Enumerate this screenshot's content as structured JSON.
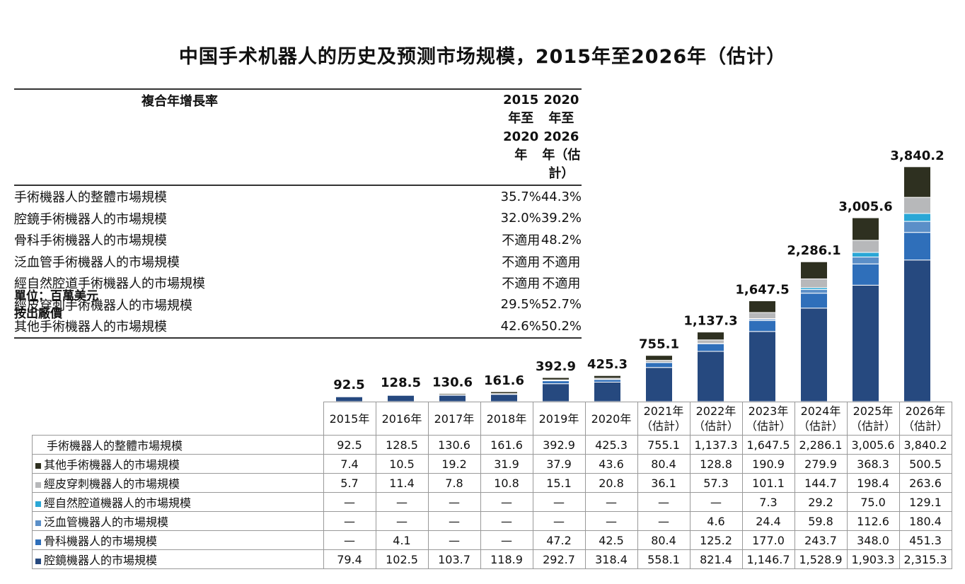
{
  "title": "中国手术机器人的历史及预测市场规模，2015年至2026年（估计）",
  "cagr_table": {
    "header": {
      "label": "複合年增長率",
      "col1": [
        "2015年至",
        "2020年"
      ],
      "col2": [
        "2020年至",
        "2026年（估計）"
      ]
    },
    "rows": [
      {
        "label": "手術機器人的整體市場規模",
        "col1": "35.7%",
        "col2": "44.3%"
      },
      {
        "label": "腔鏡手術機器人的市場規模",
        "col1": "32.0%",
        "col2": "39.2%"
      },
      {
        "label": "骨科手術機器人的市場規模",
        "col1": "不適用",
        "col2": "48.2%"
      },
      {
        "label": "泛血管手術機器人的市場規模",
        "col1": "不適用",
        "col2": "不適用"
      },
      {
        "label": "經自然腔道手術機器人的市場規模",
        "col1": "不適用",
        "col2": "不適用"
      },
      {
        "label": "經皮穿刺手術機器人的市場規模",
        "col1": "29.5%",
        "col2": "52.7%"
      },
      {
        "label": "其他手術機器人的市場規模",
        "col1": "42.6%",
        "col2": "50.2%"
      }
    ]
  },
  "unit_line1": "單位：百萬美元",
  "unit_line2": "按出廠價",
  "colors": {
    "other": "#2e3020",
    "percutaneous": "#b7b8ba",
    "natural_orifice": "#2aa7d6",
    "vascular": "#5b8fc8",
    "orthopedic": "#2f6fba",
    "laparoscopic": "#26497f"
  },
  "chart_data": {
    "type": "bar",
    "stacked": true,
    "categories": [
      [
        "2015年"
      ],
      [
        "2016年"
      ],
      [
        "2017年"
      ],
      [
        "2018年"
      ],
      [
        "2019年"
      ],
      [
        "2020年"
      ],
      [
        "2021年",
        "（估計）"
      ],
      [
        "2022年",
        "（估計）"
      ],
      [
        "2023年",
        "（估計）"
      ],
      [
        "2024年",
        "（估計）"
      ],
      [
        "2025年",
        "（估計）"
      ],
      [
        "2026年",
        "（估計）"
      ]
    ],
    "totals": [
      "92.5",
      "128.5",
      "130.6",
      "161.6",
      "392.9",
      "425.3",
      "755.1",
      "1,137.3",
      "1,647.5",
      "2,286.1",
      "3,005.6",
      "3,840.2"
    ],
    "total_row_label": "手術機器人的整體市場規模",
    "series": [
      {
        "key": "other",
        "name": "其他手術機器人的市場規模",
        "values": [
          7.4,
          10.5,
          19.2,
          31.9,
          37.9,
          43.6,
          80.4,
          128.8,
          190.9,
          279.9,
          368.3,
          500.5
        ],
        "labels": [
          "7.4",
          "10.5",
          "19.2",
          "31.9",
          "37.9",
          "43.6",
          "80.4",
          "128.8",
          "190.9",
          "279.9",
          "368.3",
          "500.5"
        ]
      },
      {
        "key": "percutaneous",
        "name": "經皮穿刺機器人的市場規模",
        "values": [
          5.7,
          11.4,
          7.8,
          10.8,
          15.1,
          20.8,
          36.1,
          57.3,
          101.1,
          144.7,
          198.4,
          263.6
        ],
        "labels": [
          "5.7",
          "11.4",
          "7.8",
          "10.8",
          "15.1",
          "20.8",
          "36.1",
          "57.3",
          "101.1",
          "144.7",
          "198.4",
          "263.6"
        ]
      },
      {
        "key": "natural_orifice",
        "name": "經自然腔道機器人的市場規模",
        "values": [
          0,
          0,
          0,
          0,
          0,
          0,
          0,
          0,
          7.3,
          29.2,
          75.0,
          129.1
        ],
        "labels": [
          "—",
          "—",
          "—",
          "—",
          "—",
          "—",
          "—",
          "—",
          "7.3",
          "29.2",
          "75.0",
          "129.1"
        ]
      },
      {
        "key": "vascular",
        "name": "泛血管機器人的市場規模",
        "values": [
          0,
          0,
          0,
          0,
          0,
          0,
          0,
          4.6,
          24.4,
          59.8,
          112.6,
          180.4
        ],
        "labels": [
          "—",
          "—",
          "—",
          "—",
          "—",
          "—",
          "—",
          "4.6",
          "24.4",
          "59.8",
          "112.6",
          "180.4"
        ]
      },
      {
        "key": "orthopedic",
        "name": "骨科機器人的市場規模",
        "values": [
          0,
          4.1,
          0,
          0,
          47.2,
          42.5,
          80.4,
          125.2,
          177.0,
          243.7,
          348.0,
          451.3
        ],
        "labels": [
          "—",
          "4.1",
          "—",
          "—",
          "47.2",
          "42.5",
          "80.4",
          "125.2",
          "177.0",
          "243.7",
          "348.0",
          "451.3"
        ]
      },
      {
        "key": "laparoscopic",
        "name": "腔鏡機器人的市場規模",
        "values": [
          79.4,
          102.5,
          103.7,
          118.9,
          292.7,
          318.4,
          558.1,
          821.4,
          1146.7,
          1528.9,
          1903.3,
          2315.3
        ],
        "labels": [
          "79.4",
          "102.5",
          "103.7",
          "118.9",
          "292.7",
          "318.4",
          "558.1",
          "821.4",
          "1,146.7",
          "1,528.9",
          "1,903.3",
          "2,315.3"
        ]
      }
    ],
    "legend_placement": "table-left"
  }
}
